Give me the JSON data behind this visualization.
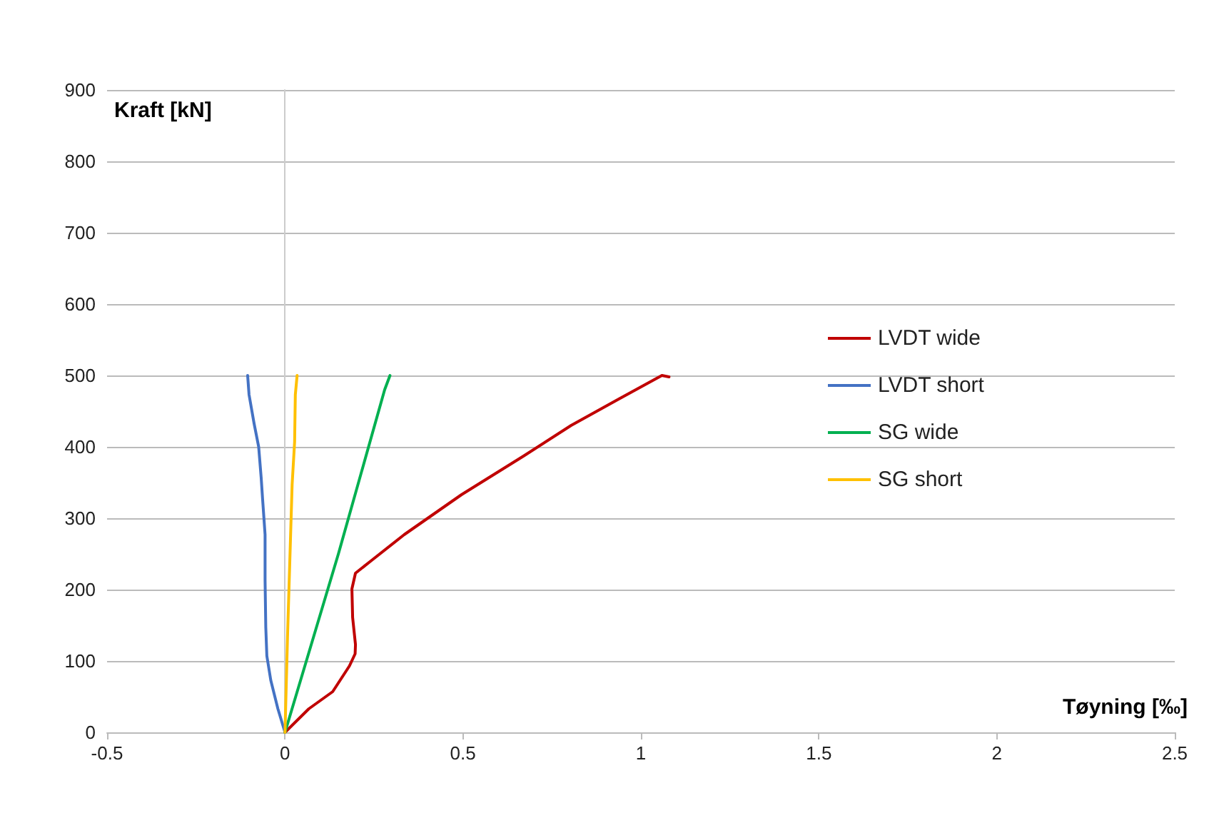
{
  "chart_data": {
    "type": "line",
    "xlabel": "Tøyning [‰]",
    "ylabel": "Kraft [kN]",
    "xlim": [
      -0.5,
      2.5
    ],
    "xticks": [
      -0.5,
      0,
      0.5,
      1,
      1.5,
      2,
      2.5
    ],
    "ylim": [
      0,
      900
    ],
    "yticks": [
      0,
      100,
      200,
      300,
      400,
      500,
      600,
      700,
      800,
      900
    ],
    "grid": "y",
    "legend": "right",
    "marker": "none",
    "line_style": "solid",
    "series": [
      {
        "name": "LVDT wide",
        "color": "#c00000",
        "x": [
          0,
          0.067,
          0.134,
          0.181,
          0.197,
          0.198,
          0.19,
          0.188,
          0.198,
          0.241,
          0.335,
          0.496,
          0.67,
          0.804,
          0.938,
          1.059,
          1.079
        ],
        "values": [
          0,
          33,
          57,
          93,
          110,
          123,
          161,
          201,
          223,
          240,
          277,
          333,
          387,
          430,
          467,
          500,
          498
        ]
      },
      {
        "name": "LVDT short",
        "color": "#4472c4",
        "x": [
          0,
          -0.02,
          -0.04,
          -0.051,
          -0.054,
          -0.056,
          -0.056,
          -0.063,
          -0.067,
          -0.074,
          -0.087,
          -0.101,
          -0.105
        ],
        "values": [
          0,
          33,
          73,
          107,
          147,
          213,
          277,
          327,
          357,
          400,
          433,
          473,
          500
        ]
      },
      {
        "name": "SG wide",
        "color": "#00b050",
        "x": [
          0,
          0.03,
          0.15,
          0.28,
          0.295
        ],
        "values": [
          0,
          50,
          250,
          480,
          500
        ]
      },
      {
        "name": "SG short",
        "color": "#ffc000",
        "x": [
          0,
          0.007,
          0.02,
          0.027,
          0.029,
          0.034
        ],
        "values": [
          0,
          133,
          347,
          407,
          473,
          500
        ]
      }
    ]
  }
}
